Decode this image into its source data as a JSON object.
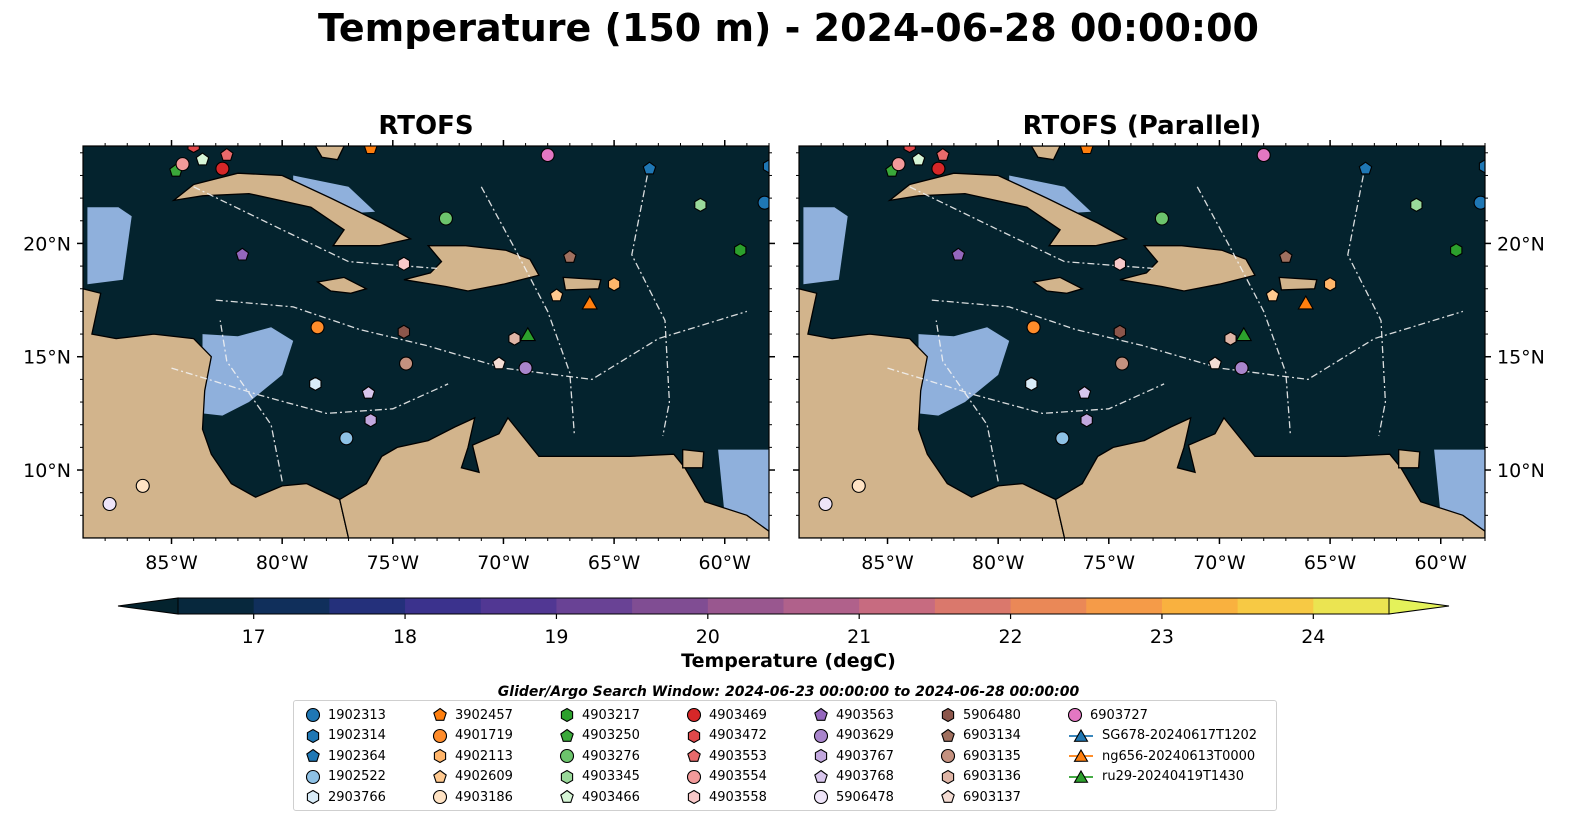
{
  "title": "Temperature (150 m) - 2024-06-28 00:00:00",
  "panels": [
    {
      "id": "left",
      "title": "RTOFS"
    },
    {
      "id": "right",
      "title": "RTOFS (Parallel)"
    }
  ],
  "axes": {
    "lon_ticks": [
      "85°W",
      "80°W",
      "75°W",
      "70°W",
      "65°W",
      "60°W"
    ],
    "lat_ticks": [
      "20°N",
      "15°N",
      "10°N"
    ],
    "lon_range": [
      -89,
      -58
    ],
    "lat_range": [
      7,
      24.3
    ]
  },
  "colorbar": {
    "label": "Temperature (degC)",
    "ticks": [
      "17",
      "18",
      "19",
      "20",
      "21",
      "22",
      "23",
      "24"
    ],
    "range": [
      16.5,
      24.5
    ],
    "extend": "both",
    "colormap": "thermal"
  },
  "search_window": "Glider/Argo Search Window: 2024-06-23 00:00:00 to 2024-06-28 00:00:00",
  "colors": {
    "land": "#d2b48c",
    "shallow_water": "#8fb0dc",
    "coastline": "#000000"
  },
  "legend": {
    "columns": [
      [
        {
          "label": "1902313",
          "marker": "circle",
          "color": "#1f77b4"
        },
        {
          "label": "1902314",
          "marker": "hexagon",
          "color": "#1f77b4"
        },
        {
          "label": "1902364",
          "marker": "pentagon",
          "color": "#1f77b4"
        },
        {
          "label": "1902522",
          "marker": "circle",
          "color": "#8ec1e5"
        },
        {
          "label": "2903766",
          "marker": "hexagon",
          "color": "#d9ecf8"
        }
      ],
      [
        {
          "label": "3902457",
          "marker": "pentagon",
          "color": "#ff7f0e"
        },
        {
          "label": "4901719",
          "marker": "circle",
          "color": "#ff8c2a"
        },
        {
          "label": "4902113",
          "marker": "hexagon",
          "color": "#ffb56a"
        },
        {
          "label": "4902609",
          "marker": "pentagon",
          "color": "#ffc98f"
        },
        {
          "label": "4903186",
          "marker": "circle",
          "color": "#ffe3c4"
        }
      ],
      [
        {
          "label": "4903217",
          "marker": "hexagon",
          "color": "#2ca02c"
        },
        {
          "label": "4903250",
          "marker": "pentagon",
          "color": "#3aa83a"
        },
        {
          "label": "4903276",
          "marker": "circle",
          "color": "#6cc46c"
        },
        {
          "label": "4903345",
          "marker": "hexagon",
          "color": "#9ad99a"
        },
        {
          "label": "4903466",
          "marker": "pentagon",
          "color": "#d6f5d6"
        }
      ],
      [
        {
          "label": "4903469",
          "marker": "circle",
          "color": "#d62728"
        },
        {
          "label": "4903472",
          "marker": "hexagon",
          "color": "#e0484a"
        },
        {
          "label": "4903553",
          "marker": "pentagon",
          "color": "#e86a6b"
        },
        {
          "label": "4903554",
          "marker": "circle",
          "color": "#f29a9a"
        },
        {
          "label": "4903558",
          "marker": "hexagon",
          "color": "#f8c9c9"
        }
      ],
      [
        {
          "label": "4903563",
          "marker": "pentagon",
          "color": "#9467bd"
        },
        {
          "label": "4903629",
          "marker": "circle",
          "color": "#a985cc"
        },
        {
          "label": "4903767",
          "marker": "hexagon",
          "color": "#c2a8de"
        },
        {
          "label": "4903768",
          "marker": "pentagon",
          "color": "#d8c6ec"
        },
        {
          "label": "5906478",
          "marker": "circle",
          "color": "#eee4f8"
        }
      ],
      [
        {
          "label": "5906480",
          "marker": "hexagon",
          "color": "#8c564b"
        },
        {
          "label": "6903134",
          "marker": "pentagon",
          "color": "#a0705f"
        },
        {
          "label": "6903135",
          "marker": "circle",
          "color": "#c4917f"
        },
        {
          "label": "6903136",
          "marker": "hexagon",
          "color": "#dfb5a6"
        },
        {
          "label": "6903137",
          "marker": "pentagon",
          "color": "#f4dcd3"
        }
      ],
      [
        {
          "label": "6903727",
          "marker": "circle",
          "color": "#e377c2"
        },
        {
          "label": "SG678-20240617T1202",
          "marker": "triangle-line",
          "color": "#1f77b4"
        },
        {
          "label": "ng656-20240613T0000",
          "marker": "triangle-line",
          "color": "#ff7f0e"
        },
        {
          "label": "ru29-20240419T1430",
          "marker": "triangle-line",
          "color": "#2ca02c"
        }
      ]
    ]
  },
  "floats": [
    {
      "id": "1902313",
      "lon": -58.2,
      "lat": 21.8
    },
    {
      "id": "1902314",
      "lon": -58.0,
      "lat": 23.4
    },
    {
      "id": "1902364",
      "lon": -63.4,
      "lat": 23.3
    },
    {
      "id": "1902522",
      "lon": -77.1,
      "lat": 11.4
    },
    {
      "id": "2903766",
      "lon": -78.5,
      "lat": 13.8
    },
    {
      "id": "3902457",
      "lon": -76.0,
      "lat": 24.2
    },
    {
      "id": "4901719",
      "lon": -78.4,
      "lat": 16.3
    },
    {
      "id": "4902113",
      "lon": -65.0,
      "lat": 18.2
    },
    {
      "id": "4902609",
      "lon": -67.6,
      "lat": 17.7
    },
    {
      "id": "4903186",
      "lon": -86.3,
      "lat": 9.3
    },
    {
      "id": "4903217",
      "lon": -59.3,
      "lat": 19.7
    },
    {
      "id": "4903250",
      "lon": -84.8,
      "lat": 23.2
    },
    {
      "id": "4903276",
      "lon": -72.6,
      "lat": 21.1
    },
    {
      "id": "4903345",
      "lon": -61.1,
      "lat": 21.7
    },
    {
      "id": "4903466",
      "lon": -83.6,
      "lat": 23.7
    },
    {
      "id": "4903469",
      "lon": -82.7,
      "lat": 23.3
    },
    {
      "id": "4903472",
      "lon": -84.0,
      "lat": 24.3
    },
    {
      "id": "4903553",
      "lon": -82.5,
      "lat": 23.9
    },
    {
      "id": "4903554",
      "lon": -84.5,
      "lat": 23.5
    },
    {
      "id": "4903558",
      "lon": -74.5,
      "lat": 19.1
    },
    {
      "id": "4903563",
      "lon": -81.8,
      "lat": 19.5
    },
    {
      "id": "4903629",
      "lon": -69.0,
      "lat": 14.5
    },
    {
      "id": "4903767",
      "lon": -76.0,
      "lat": 12.2
    },
    {
      "id": "4903768",
      "lon": -76.1,
      "lat": 13.4
    },
    {
      "id": "5906478",
      "lon": -87.8,
      "lat": 8.5
    },
    {
      "id": "5906480",
      "lon": -74.5,
      "lat": 16.1
    },
    {
      "id": "6903134",
      "lon": -67.0,
      "lat": 19.4
    },
    {
      "id": "6903135",
      "lon": -74.4,
      "lat": 14.7
    },
    {
      "id": "6903136",
      "lon": -69.5,
      "lat": 15.8
    },
    {
      "id": "6903137",
      "lon": -70.2,
      "lat": 14.7
    },
    {
      "id": "6903727",
      "lon": -68.0,
      "lat": 23.9
    }
  ],
  "gliders": [
    {
      "id": "ng656-20240613T0000",
      "lon": -66.1,
      "lat": 17.3
    },
    {
      "id": "ru29-20240419T1430",
      "lon": -68.9,
      "lat": 15.9
    }
  ]
}
